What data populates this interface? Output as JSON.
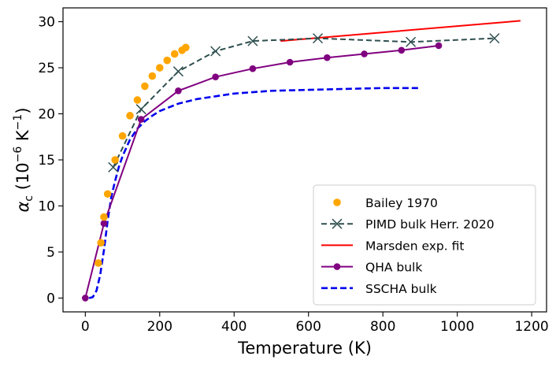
{
  "chart_data": {
    "type": "line",
    "title": "",
    "xlabel": "Temperature (K)",
    "ylabel_parts": {
      "symbol": "α",
      "subscript": "c",
      "open": " (10",
      "exponent": "−6",
      "unit": " K",
      "unit_exponent": "−1",
      "close": ")"
    },
    "xlim": [
      -60,
      1240
    ],
    "ylim": [
      -1.5,
      31.5
    ],
    "xticks": [
      0,
      200,
      400,
      600,
      800,
      1000,
      1200
    ],
    "yticks": [
      0,
      5,
      10,
      15,
      20,
      25,
      30
    ],
    "grid": false,
    "legend_position": "lower-right",
    "series": [
      {
        "name": "Bailey 1970",
        "style": "scatter",
        "color": "#ffa500",
        "x": [
          35,
          42,
          50,
          60,
          80,
          100,
          120,
          140,
          160,
          180,
          200,
          220,
          240,
          260,
          270
        ],
        "y": [
          3.8,
          6.0,
          8.8,
          11.3,
          15.0,
          17.6,
          19.8,
          21.5,
          23.0,
          24.1,
          25.0,
          25.8,
          26.5,
          26.9,
          27.2
        ]
      },
      {
        "name": "PIMD bulk Herr. 2020",
        "style": "dashed-x",
        "color": "#2f4f4f",
        "x": [
          75,
          150,
          250,
          350,
          450,
          625,
          875,
          1100
        ],
        "y": [
          14.2,
          20.5,
          24.6,
          26.8,
          27.9,
          28.2,
          27.8,
          28.2
        ]
      },
      {
        "name": "Marsden exp. fit",
        "style": "solid",
        "color": "#ff0000",
        "x": [
          525,
          1170
        ],
        "y": [
          27.9,
          30.1
        ]
      },
      {
        "name": "QHA bulk",
        "style": "solid-dot",
        "color": "#800080",
        "x": [
          0,
          50,
          150,
          250,
          350,
          450,
          550,
          650,
          750,
          850,
          950
        ],
        "y": [
          0.0,
          8.1,
          19.4,
          22.5,
          24.0,
          24.9,
          25.6,
          26.1,
          26.5,
          26.9,
          27.4
        ]
      },
      {
        "name": "SSCHA bulk",
        "style": "dashed",
        "color": "#0000ee",
        "x": [
          10,
          20,
          30,
          40,
          50,
          60,
          70,
          80,
          90,
          100,
          120,
          140,
          160,
          180,
          200,
          250,
          300,
          350,
          400,
          500,
          600,
          700,
          800,
          900
        ],
        "y": [
          0.0,
          0.1,
          0.8,
          2.5,
          5.2,
          8.4,
          11.0,
          12.7,
          14.2,
          15.4,
          17.2,
          18.4,
          19.2,
          19.8,
          20.3,
          21.1,
          21.6,
          21.9,
          22.2,
          22.5,
          22.6,
          22.7,
          22.8,
          22.8
        ]
      }
    ]
  }
}
